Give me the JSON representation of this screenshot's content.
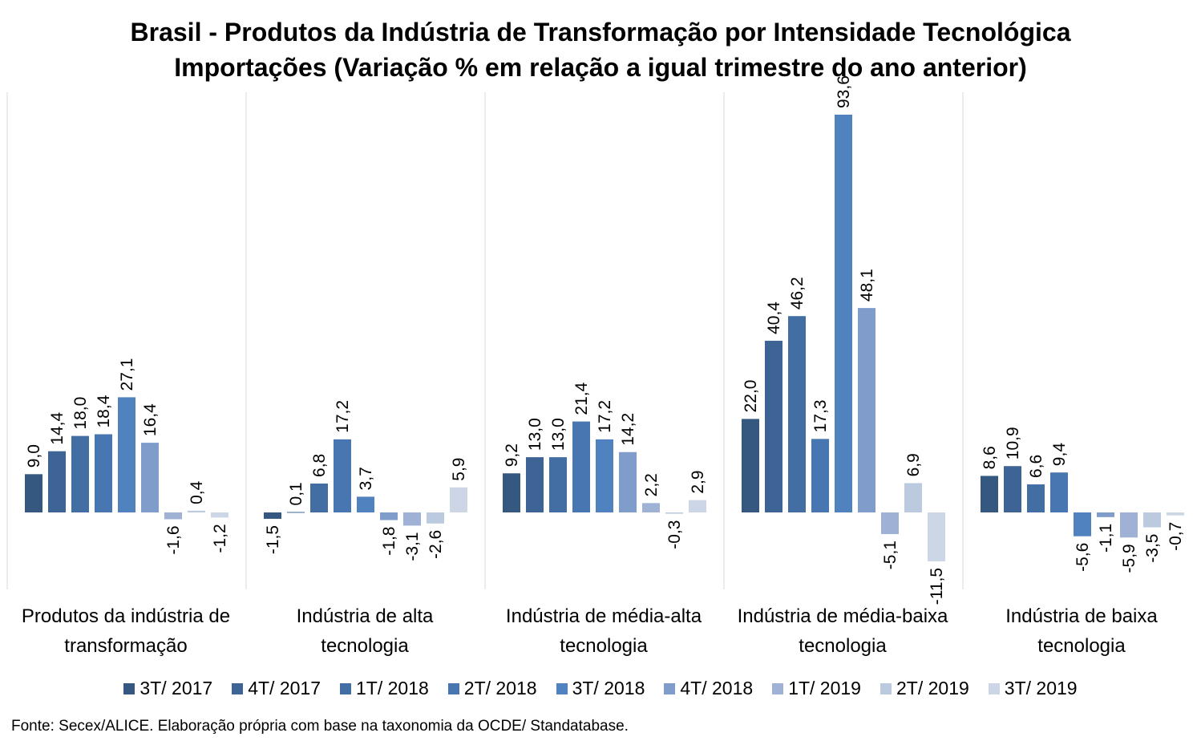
{
  "title": {
    "line1": "Brasil - Produtos da Indústria de Transformação por Intensidade Tecnológica",
    "line2": "Importações (Variação % em relação a igual trimestre do ano anterior)"
  },
  "source": "Fonte: Secex/ALICE. Elaboração própria com base na taxonomia da OCDE/ Standatabase.",
  "chart_data": {
    "type": "bar",
    "categories": [
      [
        "Produtos da indústria de",
        "transformação"
      ],
      [
        "Indústria de alta",
        "tecnologia"
      ],
      [
        "Indústria de média-alta",
        "tecnologia"
      ],
      [
        "Indústria de média-baixa",
        "tecnologia"
      ],
      [
        "Indústria de baixa",
        "tecnologia"
      ]
    ],
    "series": [
      {
        "name": "3T/ 2017",
        "color": "#345880",
        "values": [
          9.0,
          -1.5,
          9.2,
          22.0,
          8.6
        ],
        "labels": [
          "9,0",
          "-1,5",
          "9,2",
          "22,0",
          "8,6"
        ]
      },
      {
        "name": "4T/ 2017",
        "color": "#3d6494",
        "values": [
          14.4,
          0.1,
          13.0,
          40.4,
          10.9
        ],
        "labels": [
          "14,4",
          "0,1",
          "13,0",
          "40,4",
          "10,9"
        ]
      },
      {
        "name": "1T/ 2018",
        "color": "#436ea3",
        "values": [
          18.0,
          6.8,
          13.0,
          46.2,
          6.6
        ],
        "labels": [
          "18,0",
          "6,8",
          "13,0",
          "46,2",
          "6,6"
        ]
      },
      {
        "name": "2T/ 2018",
        "color": "#4876b0",
        "values": [
          18.4,
          17.2,
          21.4,
          17.3,
          9.4
        ],
        "labels": [
          "18,4",
          "17,2",
          "21,4",
          "17,3",
          "9,4"
        ]
      },
      {
        "name": "3T/ 2018",
        "color": "#5082c0",
        "values": [
          27.1,
          3.7,
          17.2,
          93.6,
          -5.6
        ],
        "labels": [
          "27,1",
          "3,7",
          "17,2",
          "93,6",
          "-5,6"
        ]
      },
      {
        "name": "4T/ 2018",
        "color": "#7f9ccb",
        "values": [
          16.4,
          -1.8,
          14.2,
          48.1,
          -1.1
        ],
        "labels": [
          "16,4",
          "-1,8",
          "14,2",
          "48,1",
          "-1,1"
        ]
      },
      {
        "name": "1T/ 2019",
        "color": "#9fb2d5",
        "values": [
          -1.6,
          -3.1,
          2.2,
          -5.1,
          -5.9
        ],
        "labels": [
          "-1,6",
          "-3,1",
          "2,2",
          "-5,1",
          "-5,9"
        ]
      },
      {
        "name": "2T/ 2019",
        "color": "#bccadf",
        "values": [
          0.4,
          -2.6,
          -0.3,
          6.9,
          -3.5
        ],
        "labels": [
          "0,4",
          "-2,6",
          "-0,3",
          "6,9",
          "-3,5"
        ]
      },
      {
        "name": "3T/ 2019",
        "color": "#ccd6e6",
        "values": [
          -1.2,
          5.9,
          2.9,
          -11.5,
          -0.7
        ],
        "labels": [
          "-1,2",
          "5,9",
          "2,9",
          "-11,5",
          "-0,7"
        ]
      }
    ],
    "ylim": [
      -15,
      100
    ],
    "grid": false,
    "legend_position": "bottom"
  }
}
